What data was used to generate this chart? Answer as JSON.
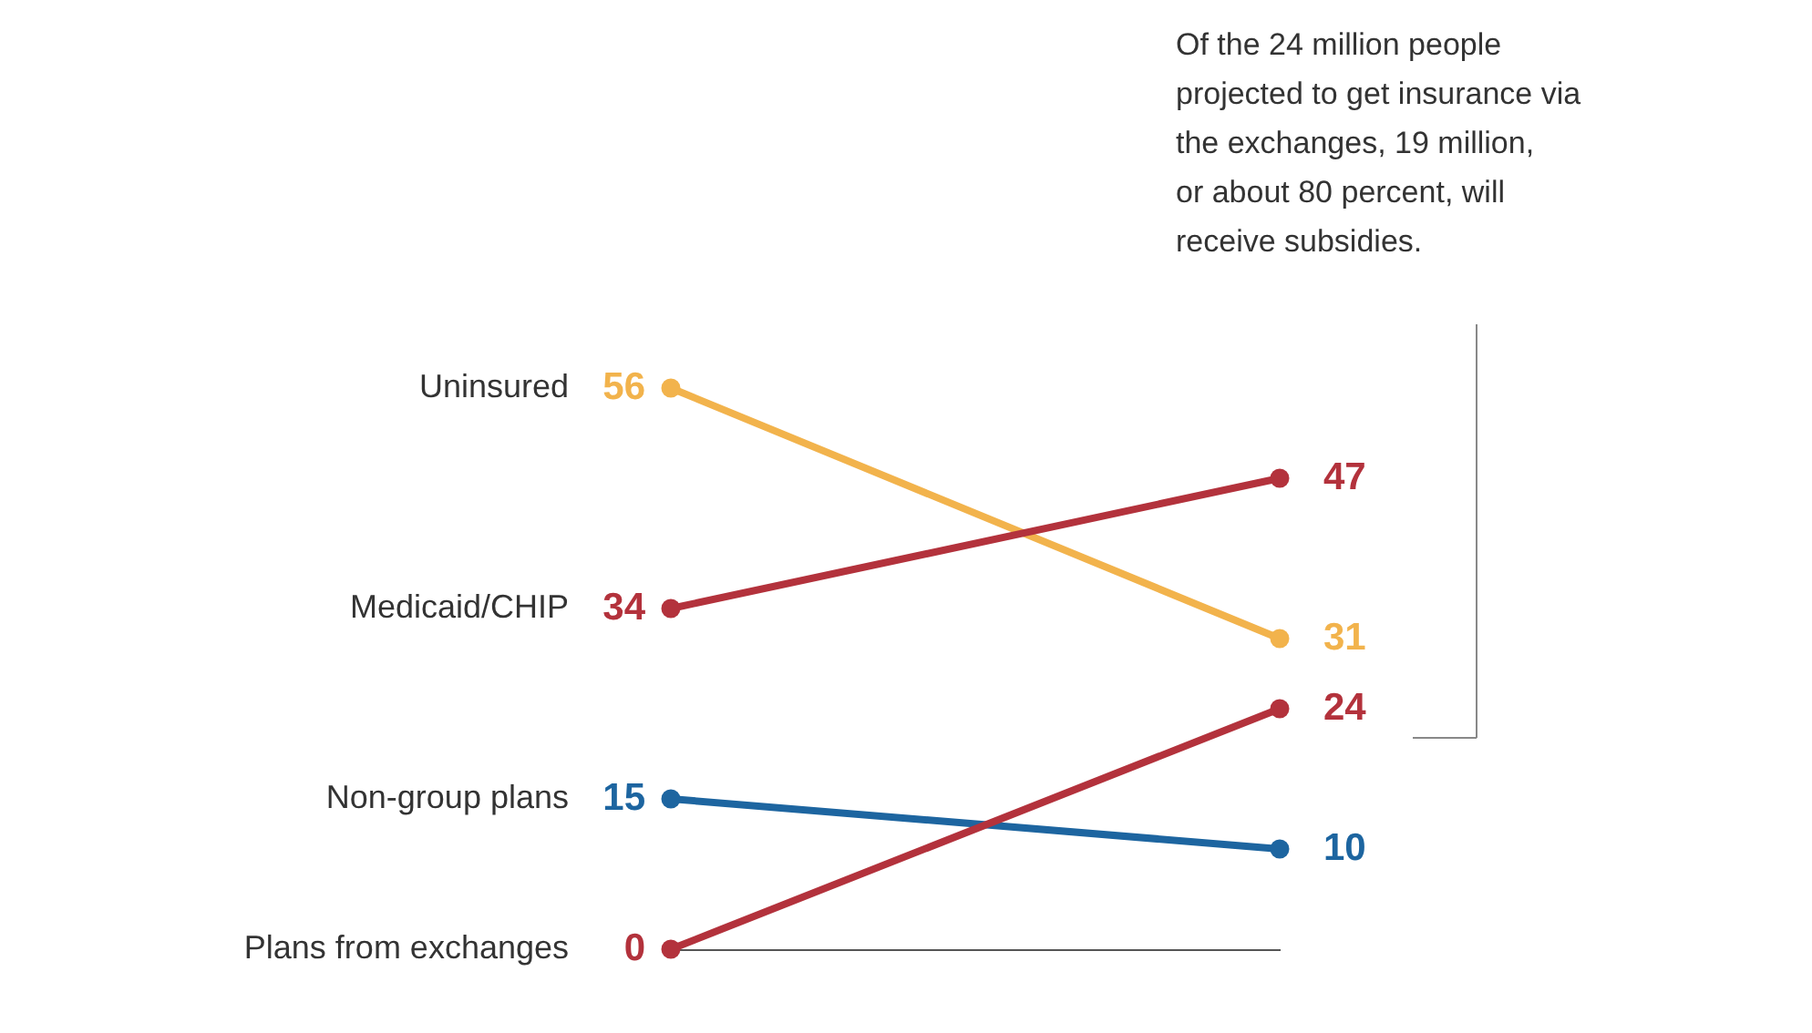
{
  "chart_data": {
    "type": "line",
    "categories": [
      null,
      null
    ],
    "series": [
      {
        "name": "Uninsured",
        "color": "#f2b34c",
        "values": [
          56,
          31
        ]
      },
      {
        "name": "Medicaid/CHIP",
        "color": "#b3323c",
        "values": [
          34,
          47
        ]
      },
      {
        "name": "Non-group plans",
        "color": "#1d65a0",
        "values": [
          15,
          10
        ]
      },
      {
        "name": "Plans from exchanges",
        "color": "#b3323c",
        "values": [
          0,
          24
        ]
      }
    ],
    "data_labels": true,
    "marker": "circle",
    "line_style": "solid",
    "legend": false,
    "grid": false,
    "tick_labels": false,
    "annotations": [
      "Of the 24 million people\nprojected to get insurance via\nthe exchanges, 19 million,\nor about 80 percent, will\nreceive subsidies."
    ]
  }
}
